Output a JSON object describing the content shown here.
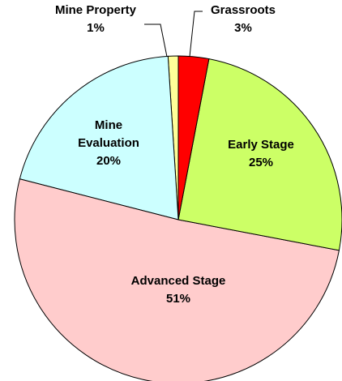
{
  "chart_data": {
    "type": "pie",
    "categories": [
      "Grassroots",
      "Early Stage",
      "Advanced Stage",
      "Mine Evaluation",
      "Mine Property"
    ],
    "values": [
      3,
      25,
      51,
      20,
      1
    ],
    "value_labels": [
      "3%",
      "25%",
      "51%",
      "20%",
      "1%"
    ],
    "colors": [
      "#ff0000",
      "#ccff66",
      "#ffcccc",
      "#ccffff",
      "#ffff99"
    ]
  }
}
